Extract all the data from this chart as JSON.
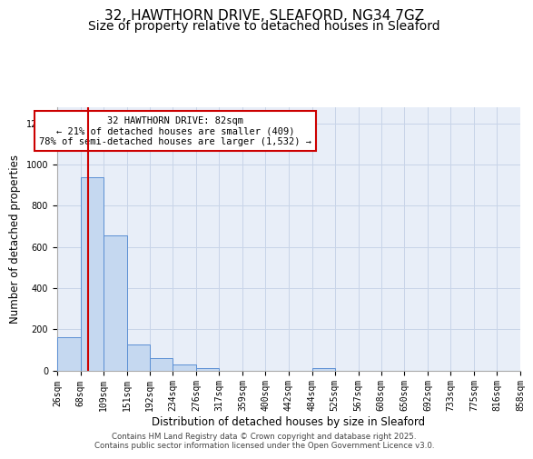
{
  "title_line1": "32, HAWTHORN DRIVE, SLEAFORD, NG34 7GZ",
  "title_line2": "Size of property relative to detached houses in Sleaford",
  "xlabel": "Distribution of detached houses by size in Sleaford",
  "ylabel": "Number of detached properties",
  "bin_edges": [
    26,
    68,
    109,
    151,
    192,
    234,
    276,
    317,
    359,
    400,
    442,
    484,
    525,
    567,
    608,
    650,
    692,
    733,
    775,
    816,
    858
  ],
  "bar_heights": [
    160,
    940,
    655,
    125,
    60,
    27,
    12,
    0,
    0,
    0,
    0,
    12,
    0,
    0,
    0,
    0,
    0,
    0,
    0,
    0
  ],
  "bar_color": "#c5d8f0",
  "bar_edge_color": "#5b8fd4",
  "bar_edge_width": 0.7,
  "grid_color": "#c8d4e8",
  "background_color": "#e8eef8",
  "ylim": [
    0,
    1280
  ],
  "yticks": [
    0,
    200,
    400,
    600,
    800,
    1000,
    1200
  ],
  "property_line_x": 82,
  "property_line_color": "#cc0000",
  "annotation_text": "32 HAWTHORN DRIVE: 82sqm\n← 21% of detached houses are smaller (409)\n78% of semi-detached houses are larger (1,532) →",
  "annotation_box_color": "#ffffff",
  "annotation_box_edge": "#cc0000",
  "annotation_fontsize": 7.5,
  "title_fontsize1": 11,
  "title_fontsize2": 10,
  "xlabel_fontsize": 8.5,
  "ylabel_fontsize": 8.5,
  "tick_fontsize": 7,
  "footer_line1": "Contains HM Land Registry data © Crown copyright and database right 2025.",
  "footer_line2": "Contains public sector information licensed under the Open Government Licence v3.0.",
  "footer_fontsize": 6.2
}
